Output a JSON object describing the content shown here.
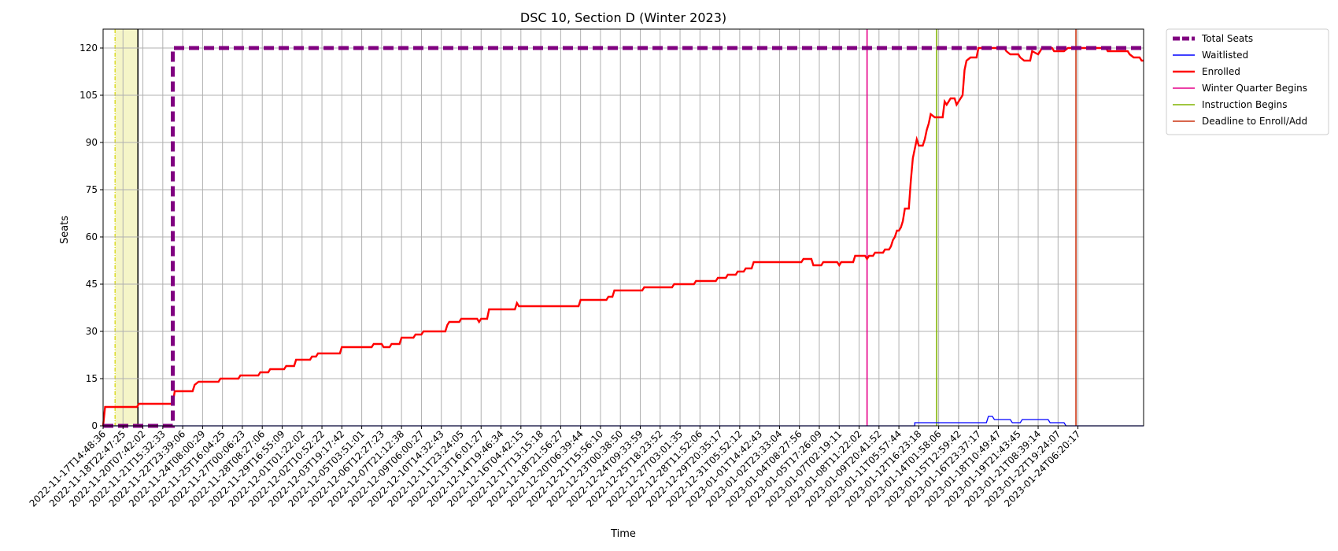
{
  "chart_data": {
    "type": "line",
    "title": "DSC 10, Section D (Winter 2023)",
    "xlabel": "Time",
    "ylabel": "Seats",
    "ylim": [
      0,
      126
    ],
    "yticks": [
      0,
      15,
      30,
      45,
      60,
      75,
      90,
      105,
      120
    ],
    "x_tick_labels": [
      "2022-11-17T14:48:36",
      "2022-11-18T22:47:25",
      "2022-11-20T07:42:02",
      "2022-11-21T15:32:33",
      "2022-11-22T23:39:06",
      "2022-11-24T08:00:29",
      "2022-11-25T16:04:25",
      "2022-11-27T00:06:23",
      "2022-11-28T08:27:06",
      "2022-11-29T16:55:09",
      "2022-12-01T01:22:02",
      "2022-12-02T10:52:22",
      "2022-12-03T19:17:42",
      "2022-12-05T03:51:01",
      "2022-12-06T12:27:23",
      "2022-12-07T21:12:38",
      "2022-12-09T06:00:27",
      "2022-12-10T14:32:43",
      "2022-12-11T23:24:05",
      "2022-12-13T16:01:27",
      "2022-12-14T19:46:34",
      "2022-12-16T04:42:15",
      "2022-12-17T13:15:18",
      "2022-12-18T21:56:27",
      "2022-12-20T06:39:44",
      "2022-12-21T15:56:10",
      "2022-12-23T00:38:50",
      "2022-12-24T09:33:59",
      "2022-12-25T18:23:52",
      "2022-12-27T03:01:35",
      "2022-12-28T11:52:06",
      "2022-12-29T20:35:17",
      "2022-12-31T05:52:12",
      "2023-01-01T14:42:43",
      "2023-01-02T23:33:04",
      "2023-01-04T08:27:56",
      "2023-01-05T17:26:09",
      "2023-01-07T02:19:11",
      "2023-01-08T11:22:02",
      "2023-01-09T20:41:52",
      "2023-01-11T05:57:44",
      "2023-01-12T16:23:18",
      "2023-01-14T01:58:06",
      "2023-01-15T12:59:42",
      "2023-01-16T23:37:17",
      "2023-01-18T10:49:47",
      "2023-01-19T21:43:45",
      "2023-01-21T08:39:14",
      "2023-01-22T19:24:07",
      "2023-01-24T06:20:17"
    ],
    "x_index_range": [
      0,
      52.3
    ],
    "series": [
      {
        "name": "Total Seats",
        "color": "#800080",
        "style": "dashed",
        "points": [
          [
            0,
            0
          ],
          [
            3.5,
            0
          ],
          [
            3.5,
            120
          ],
          [
            52.3,
            120
          ]
        ]
      },
      {
        "name": "Waitlisted",
        "color": "#0000ff",
        "style": "solid",
        "points": [
          [
            0,
            0
          ],
          [
            40.8,
            0
          ],
          [
            40.8,
            1
          ],
          [
            44.4,
            1
          ],
          [
            44.5,
            3
          ],
          [
            44.7,
            3
          ],
          [
            44.8,
            2
          ],
          [
            45.6,
            2
          ],
          [
            45.7,
            1
          ],
          [
            46.1,
            1
          ],
          [
            46.2,
            2
          ],
          [
            47.5,
            2
          ],
          [
            47.6,
            1
          ],
          [
            48.3,
            1
          ],
          [
            48.4,
            0
          ],
          [
            52.3,
            0
          ]
        ]
      },
      {
        "name": "Enrolled",
        "color": "#ff0000",
        "style": "solid",
        "points": [
          [
            0,
            0
          ],
          [
            0.1,
            6
          ],
          [
            1.7,
            6
          ],
          [
            1.8,
            7
          ],
          [
            3.5,
            7
          ],
          [
            3.6,
            11
          ],
          [
            4.5,
            11
          ],
          [
            4.6,
            13
          ],
          [
            4.8,
            14
          ],
          [
            5.8,
            14
          ],
          [
            5.9,
            15
          ],
          [
            6.8,
            15
          ],
          [
            6.9,
            16
          ],
          [
            7.8,
            16
          ],
          [
            7.9,
            17
          ],
          [
            8.3,
            17
          ],
          [
            8.4,
            18
          ],
          [
            9.1,
            18
          ],
          [
            9.2,
            19
          ],
          [
            9.6,
            19
          ],
          [
            9.7,
            21
          ],
          [
            10.4,
            21
          ],
          [
            10.5,
            22
          ],
          [
            10.7,
            22
          ],
          [
            10.8,
            23
          ],
          [
            11.9,
            23
          ],
          [
            12.0,
            25
          ],
          [
            13.5,
            25
          ],
          [
            13.6,
            26
          ],
          [
            14.0,
            26
          ],
          [
            14.1,
            25
          ],
          [
            14.4,
            25
          ],
          [
            14.5,
            26
          ],
          [
            14.9,
            26
          ],
          [
            15.0,
            28
          ],
          [
            15.6,
            28
          ],
          [
            15.7,
            29
          ],
          [
            16.0,
            29
          ],
          [
            16.1,
            30
          ],
          [
            17.2,
            30
          ],
          [
            17.3,
            32
          ],
          [
            17.4,
            33
          ],
          [
            17.9,
            33
          ],
          [
            18.0,
            34
          ],
          [
            18.8,
            34
          ],
          [
            18.9,
            33
          ],
          [
            19.0,
            34
          ],
          [
            19.3,
            34
          ],
          [
            19.4,
            37
          ],
          [
            20.7,
            37
          ],
          [
            20.8,
            39
          ],
          [
            20.9,
            38
          ],
          [
            23.9,
            38
          ],
          [
            24.0,
            40
          ],
          [
            25.3,
            40
          ],
          [
            25.4,
            41
          ],
          [
            25.6,
            41
          ],
          [
            25.7,
            43
          ],
          [
            27.1,
            43
          ],
          [
            27.2,
            44
          ],
          [
            28.6,
            44
          ],
          [
            28.7,
            45
          ],
          [
            29.7,
            45
          ],
          [
            29.8,
            46
          ],
          [
            30.8,
            46
          ],
          [
            30.9,
            47
          ],
          [
            31.3,
            47
          ],
          [
            31.4,
            48
          ],
          [
            31.8,
            48
          ],
          [
            31.9,
            49
          ],
          [
            32.2,
            49
          ],
          [
            32.3,
            50
          ],
          [
            32.6,
            50
          ],
          [
            32.7,
            52
          ],
          [
            35.1,
            52
          ],
          [
            35.2,
            53
          ],
          [
            35.6,
            53
          ],
          [
            35.7,
            51
          ],
          [
            36.1,
            51
          ],
          [
            36.2,
            52
          ],
          [
            36.9,
            52
          ],
          [
            37.0,
            51
          ],
          [
            37.1,
            52
          ],
          [
            37.7,
            52
          ],
          [
            37.8,
            54
          ],
          [
            38.3,
            54
          ],
          [
            38.4,
            53
          ],
          [
            38.5,
            54
          ],
          [
            38.7,
            54
          ],
          [
            38.8,
            55
          ],
          [
            39.2,
            55
          ],
          [
            39.3,
            56
          ],
          [
            39.5,
            56
          ],
          [
            39.6,
            57
          ],
          [
            39.7,
            59
          ],
          [
            39.8,
            60
          ],
          [
            39.9,
            62
          ],
          [
            40.0,
            62
          ],
          [
            40.1,
            63
          ],
          [
            40.2,
            65
          ],
          [
            40.3,
            69
          ],
          [
            40.5,
            69
          ],
          [
            40.6,
            78
          ],
          [
            40.7,
            85
          ],
          [
            40.8,
            88
          ],
          [
            40.9,
            91
          ],
          [
            41.0,
            89
          ],
          [
            41.2,
            89
          ],
          [
            41.3,
            91
          ],
          [
            41.4,
            94
          ],
          [
            41.5,
            96
          ],
          [
            41.6,
            99
          ],
          [
            41.8,
            98
          ],
          [
            42.2,
            98
          ],
          [
            42.3,
            103
          ],
          [
            42.4,
            102
          ],
          [
            42.6,
            104
          ],
          [
            42.8,
            104
          ],
          [
            42.9,
            102
          ],
          [
            43.2,
            105
          ],
          [
            43.3,
            113
          ],
          [
            43.4,
            116
          ],
          [
            43.6,
            117
          ],
          [
            43.9,
            117
          ],
          [
            44.0,
            120
          ],
          [
            45.3,
            120
          ],
          [
            45.4,
            119
          ],
          [
            45.6,
            118
          ],
          [
            46.0,
            118
          ],
          [
            46.1,
            117
          ],
          [
            46.3,
            116
          ],
          [
            46.6,
            116
          ],
          [
            46.7,
            119
          ],
          [
            47.0,
            118
          ],
          [
            47.2,
            120
          ],
          [
            47.7,
            120
          ],
          [
            47.8,
            119
          ],
          [
            48.3,
            119
          ],
          [
            48.5,
            120
          ],
          [
            50.4,
            120
          ],
          [
            50.5,
            119
          ],
          [
            51.5,
            119
          ],
          [
            51.6,
            118
          ],
          [
            51.8,
            117
          ],
          [
            52.1,
            117
          ],
          [
            52.2,
            116
          ],
          [
            52.3,
            116
          ]
        ]
      }
    ],
    "vertical_lines": [
      {
        "name": "Winter Quarter Begins",
        "x": 38.4,
        "color": "#e6008a"
      },
      {
        "name": "Instruction Begins",
        "x": 41.9,
        "color": "#80b300"
      },
      {
        "name": "Deadline to Enroll/Add",
        "x": 48.9,
        "color": "#cc3311"
      }
    ],
    "shaded_region": {
      "x_start": 0.6,
      "x_end": 1.75,
      "color": "#f5f5c8",
      "edge_left_color": "#d4d400",
      "edge_right_color": "#000000"
    },
    "legend_labels": [
      "Total Seats",
      "Waitlisted",
      "Enrolled",
      "Winter Quarter Begins",
      "Instruction Begins",
      "Deadline to Enroll/Add"
    ],
    "legend_colors": [
      "#800080",
      "#0000ff",
      "#ff0000",
      "#e6008a",
      "#80b300",
      "#cc3311"
    ],
    "grid": true,
    "legend_placement": "outside top-right"
  }
}
